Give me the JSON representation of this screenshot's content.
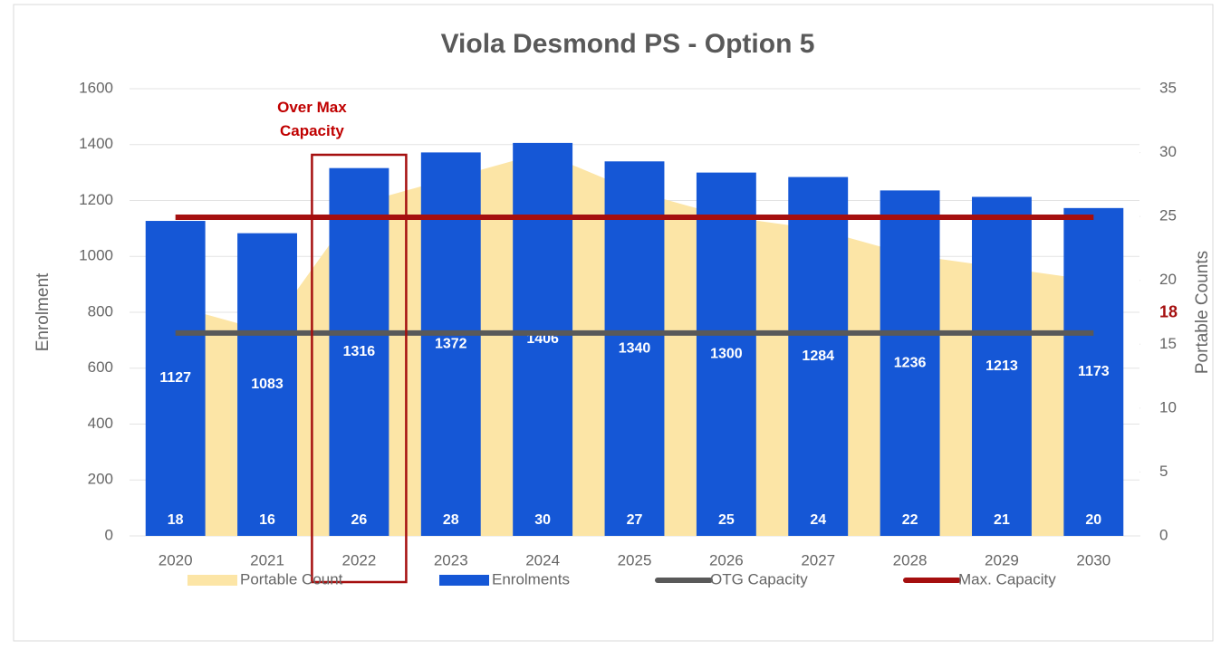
{
  "chart_data": {
    "type": "bar",
    "title": "Viola Desmond PS - Option 5",
    "categories": [
      "2020",
      "2021",
      "2022",
      "2023",
      "2024",
      "2025",
      "2026",
      "2027",
      "2028",
      "2029",
      "2030"
    ],
    "series": [
      {
        "name": "Portable Count",
        "type": "area",
        "axis": "y2",
        "color": "#fce5a6",
        "values": [
          18,
          16,
          26,
          28,
          30,
          27,
          25,
          24,
          22,
          21,
          20
        ]
      },
      {
        "name": "Enrolments",
        "type": "bar",
        "color": "#1557d6",
        "values": [
          1127,
          1083,
          1316,
          1372,
          1406,
          1340,
          1300,
          1284,
          1236,
          1213,
          1173
        ]
      },
      {
        "name": "OTG Capacity",
        "type": "line",
        "color": "#595959",
        "values": [
          726,
          726,
          726,
          726,
          726,
          726,
          726,
          726,
          726,
          726,
          726
        ]
      },
      {
        "name": "Max. Capacity",
        "type": "line",
        "color": "#a50f0f",
        "values": [
          1140,
          1140,
          1140,
          1140,
          1140,
          1140,
          1140,
          1140,
          1140,
          1140,
          1140
        ]
      }
    ],
    "ylabel": "Enrolment",
    "y2label": "Portable Counts",
    "ylim": [
      0,
      1600
    ],
    "yticks": [
      0,
      200,
      400,
      600,
      800,
      1000,
      1200,
      1400,
      1600
    ],
    "y2lim": [
      0,
      35
    ],
    "y2ticks": [
      0,
      5,
      10,
      15,
      20,
      25,
      30,
      35
    ],
    "grid": true,
    "legend": "bottom",
    "annotations": [
      {
        "text": "Over Max Capacity",
        "category": "2022",
        "color": "#c00000"
      },
      {
        "text": "18",
        "axis": "y2",
        "value": 18,
        "color": "#a50f0f"
      }
    ]
  }
}
